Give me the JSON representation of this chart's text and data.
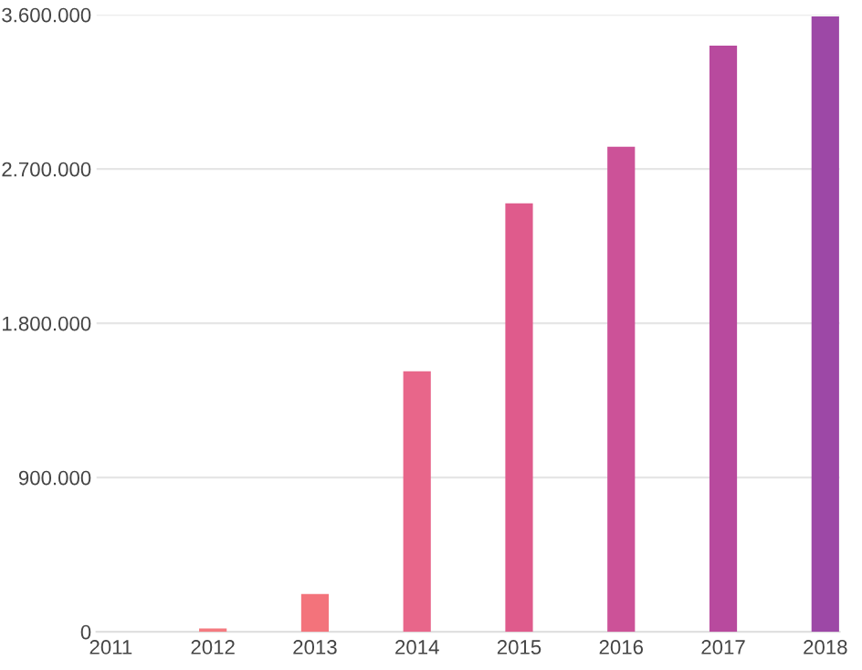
{
  "chart_data": {
    "type": "bar",
    "categories": [
      "2011",
      "2012",
      "2013",
      "2014",
      "2015",
      "2016",
      "2017",
      "2018"
    ],
    "values": [
      0,
      20000,
      220000,
      1520000,
      2500000,
      2830000,
      3420000,
      3590000
    ],
    "colors": [
      "#f67d7d",
      "#f47a80",
      "#f3737b",
      "#e8668a",
      "#df5b8c",
      "#cc5298",
      "#b84a9e",
      "#9d48a6"
    ],
    "ylim": [
      0,
      3600000
    ],
    "yticks": [
      {
        "value": 0,
        "label": "0"
      },
      {
        "value": 900000,
        "label": "900.000"
      },
      {
        "value": 1800000,
        "label": "1.800.000"
      },
      {
        "value": 2700000,
        "label": "2.700.000"
      },
      {
        "value": 3600000,
        "label": "3.600.000"
      }
    ],
    "grid": "y",
    "legend": false
  }
}
